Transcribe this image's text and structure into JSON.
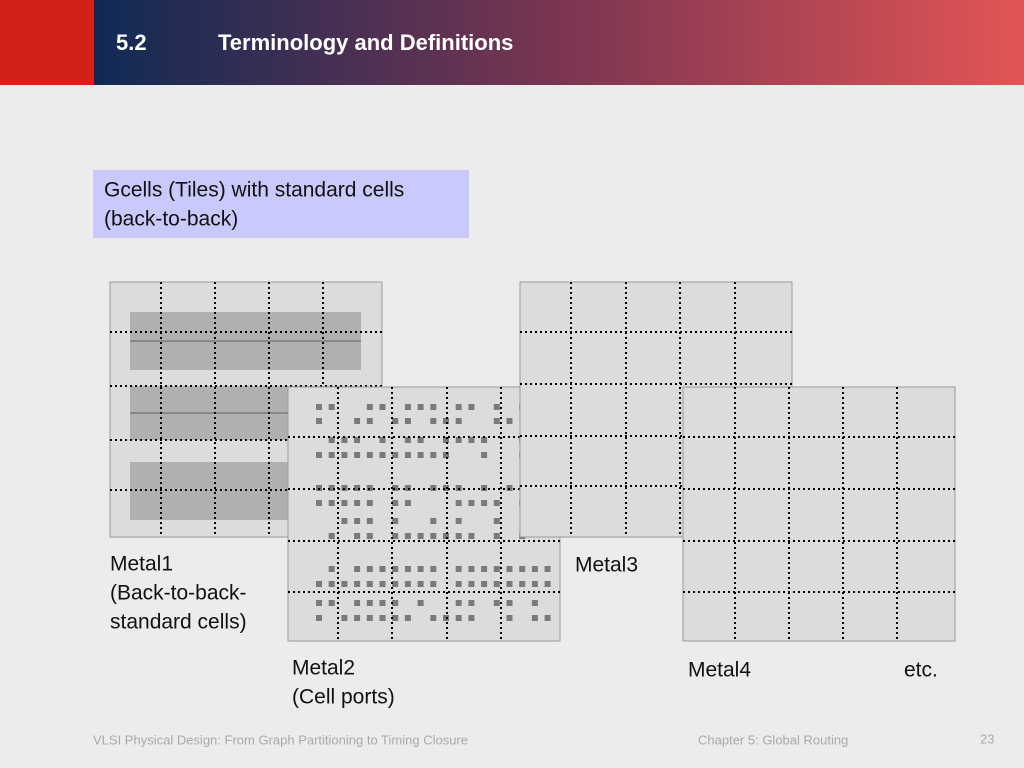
{
  "header": {
    "section": "5.2",
    "title": "Terminology and Definitions"
  },
  "callout": {
    "lines": [
      "Gcells (Tiles) with standard cells",
      "(back-to-back)"
    ]
  },
  "layers": [
    {
      "lines": [
        "Metal1",
        "(Back-to-back-",
        "standard cells)"
      ]
    },
    {
      "lines": [
        "Metal2",
        "(Cell ports)"
      ]
    },
    {
      "lines": [
        "Metal3"
      ]
    },
    {
      "lines": [
        "Metal4"
      ]
    }
  ],
  "etc": "etc.",
  "footer": {
    "left": "VLSI Physical Design: From Graph Partitioning to Timing Closure",
    "middle": "Chapter 5: Global Routing",
    "page": "23"
  }
}
